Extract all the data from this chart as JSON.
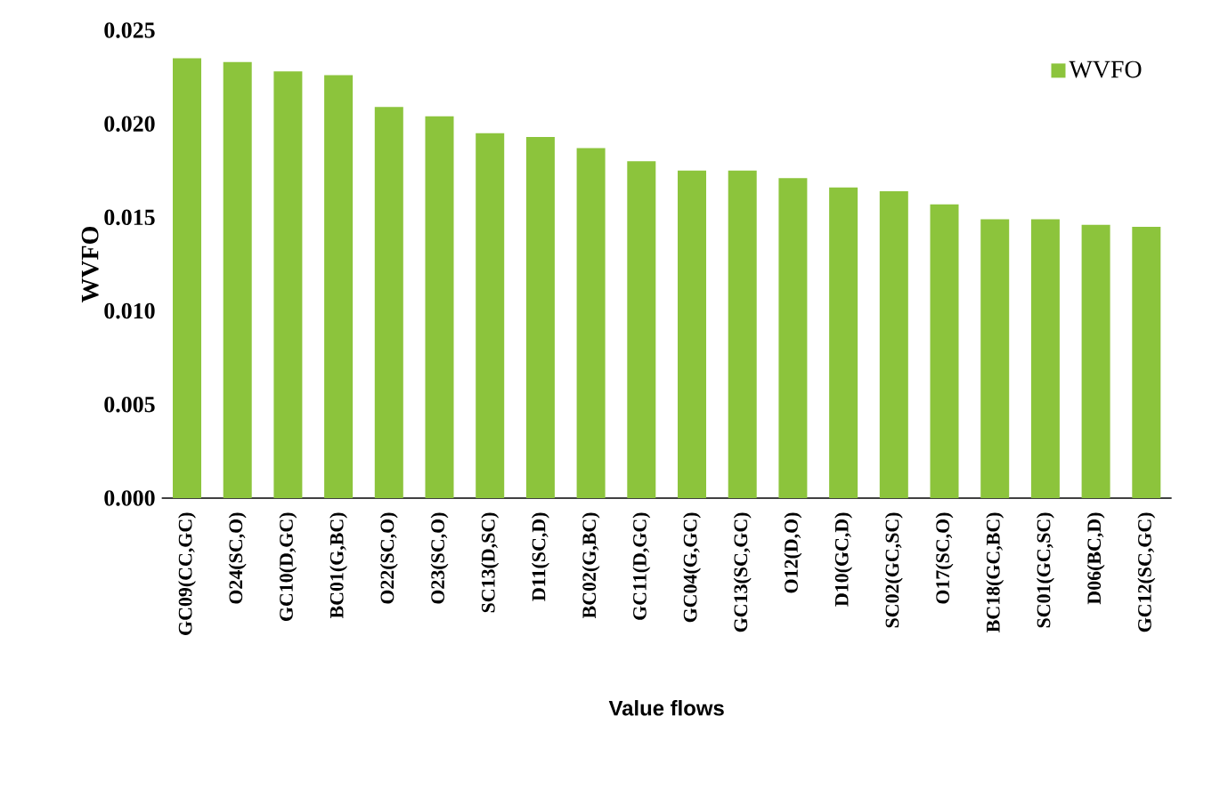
{
  "chart_data": {
    "type": "bar",
    "xlabel": "Value flows",
    "ylabel": "WVFO",
    "categories": [
      "GC09(CC,GC)",
      "O24(SC,O)",
      "GC10(D,GC)",
      "BC01(G,BC)",
      "O22(SC,O)",
      "O23(SC,O)",
      "SC13(D,SC)",
      "D11(SC,D)",
      "BC02(G,BC)",
      "GC11(D,GC)",
      "GC04(G,GC)",
      "GC13(SC,GC)",
      "O12(D,O)",
      "D10(GC,D)",
      "SC02(GC,SC)",
      "O17(SC,O)",
      "BC18(GC,BC)",
      "SC01(GC,SC)",
      "D06(BC,D)",
      "GC12(SC,GC)"
    ],
    "series": [
      {
        "name": "WVFO",
        "color": "#8cc43c",
        "values": [
          0.0235,
          0.0233,
          0.0228,
          0.0226,
          0.0209,
          0.0204,
          0.0195,
          0.0193,
          0.0187,
          0.018,
          0.0175,
          0.0175,
          0.0171,
          0.0166,
          0.0164,
          0.0157,
          0.0149,
          0.0149,
          0.0146,
          0.0145
        ]
      }
    ],
    "ylim": [
      0,
      0.025
    ],
    "yticks": [
      {
        "value": 0,
        "label": "0.000"
      },
      {
        "value": 0.005,
        "label": "0.005"
      },
      {
        "value": 0.01,
        "label": "0.010"
      },
      {
        "value": 0.015,
        "label": "0.015"
      },
      {
        "value": 0.02,
        "label": "0.020"
      },
      {
        "value": 0.025,
        "label": "0.025"
      }
    ],
    "legend": "top right",
    "grid": false
  }
}
